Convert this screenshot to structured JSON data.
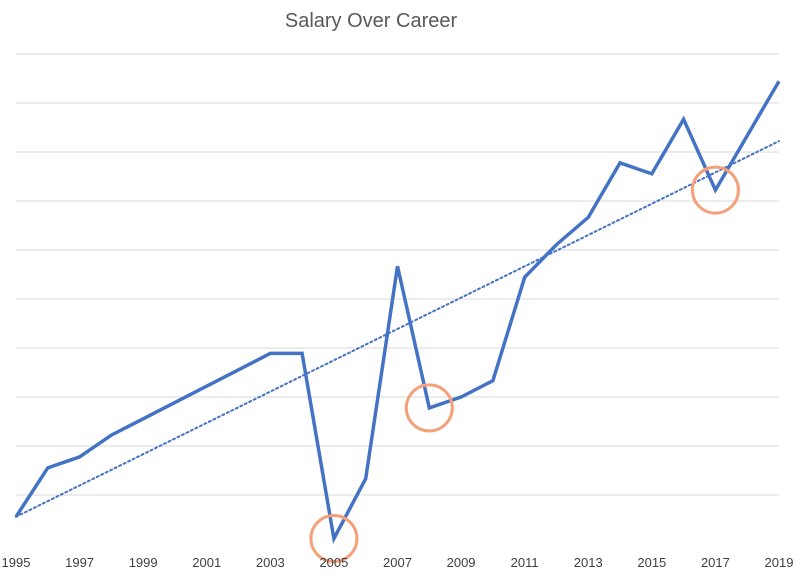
{
  "chart_data": {
    "type": "line",
    "title": "Salary Over Career",
    "xlabel": "",
    "ylabel": "",
    "x": [
      1995,
      1996,
      1997,
      1998,
      1999,
      2000,
      2001,
      2002,
      2003,
      2004,
      2005,
      2006,
      2007,
      2008,
      2009,
      2010,
      2011,
      2012,
      2013,
      2014,
      2015,
      2016,
      2017,
      2018,
      2019
    ],
    "x_tick_labels": [
      "1995",
      "1997",
      "1999",
      "2001",
      "2003",
      "2005",
      "2007",
      "2009",
      "2011",
      "2013",
      "2015",
      "2017",
      "2019"
    ],
    "xlim": [
      1995,
      2019
    ],
    "ylim": [
      -0.5,
      8.5
    ],
    "y_tick_labels_visible": false,
    "grid": "horizontal",
    "series": [
      {
        "values": [
          0,
          0.9,
          1.1,
          1.5,
          1.8,
          2.1,
          2.4,
          2.7,
          3.0,
          3.0,
          -0.4,
          0.7,
          4.6,
          2.0,
          2.2,
          2.5,
          4.4,
          5.0,
          5.5,
          6.5,
          6.3,
          7.3,
          6.0,
          7.0,
          8.0
        ],
        "color": "#4472c4"
      }
    ],
    "trendline": {
      "style": "dotted",
      "color": "#4472c4",
      "start": [
        1995,
        0.0
      ],
      "end": [
        2019,
        6.9
      ]
    },
    "highlights": [
      {
        "x": 2005,
        "y": -0.4,
        "color": "#f4a17a"
      },
      {
        "x": 2008,
        "y": 2.0,
        "color": "#f4a17a"
      },
      {
        "x": 2017,
        "y": 6.0,
        "color": "#f4a17a"
      }
    ]
  }
}
